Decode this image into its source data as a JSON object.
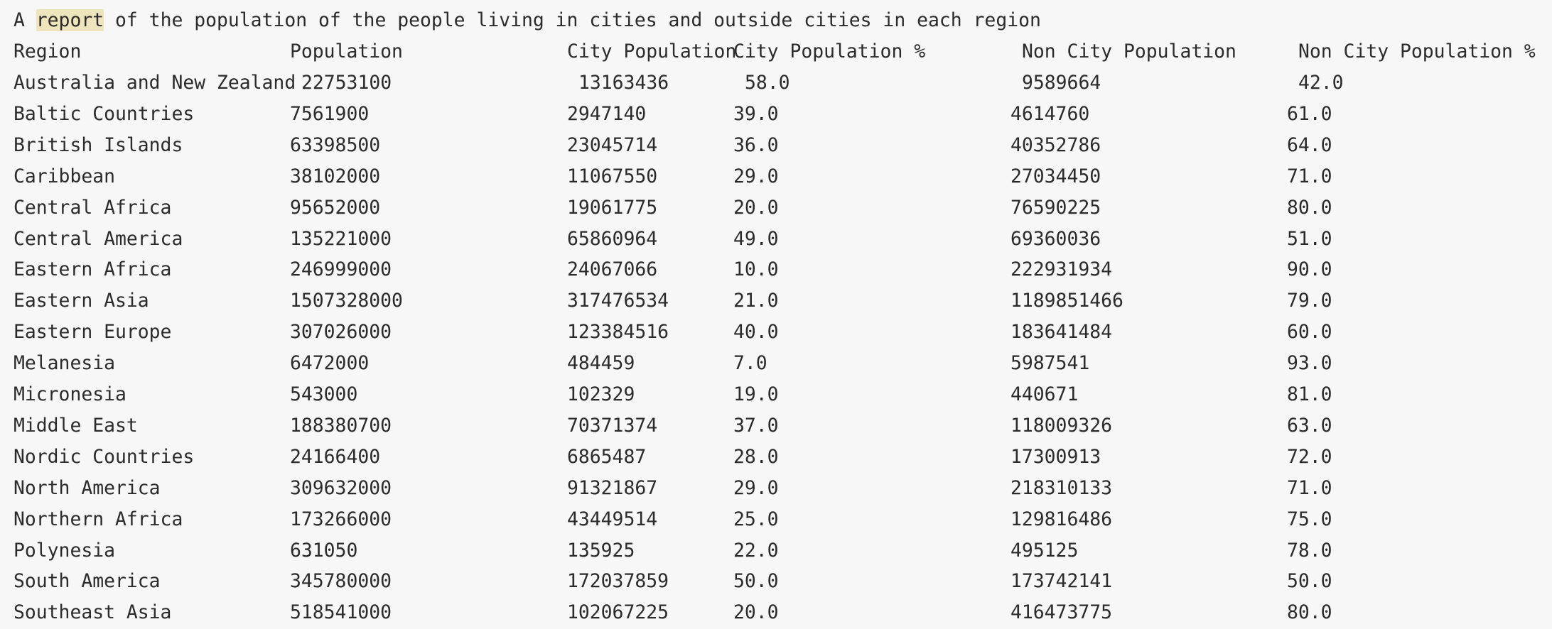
{
  "output": {
    "title": {
      "before": "A ",
      "highlight": "report",
      "after": " of the population of the people living in cities and outside cities in each region"
    },
    "header": {
      "region": "Region",
      "population": "Population",
      "city_population": "City Population",
      "city_population_pct": "City Population %",
      "non_city_population": "Non City Population",
      "non_city_population_pct": "Non City Population %"
    },
    "rows": [
      {
        "region": "Australia and New Zealand",
        "population": "22753100",
        "city_population": "13163436",
        "city_population_pct": "58.0",
        "non_city_population": "9589664",
        "non_city_population_pct": "42.0"
      },
      {
        "region": "Baltic Countries",
        "population": "7561900",
        "city_population": "2947140",
        "city_population_pct": "39.0",
        "non_city_population": "4614760",
        "non_city_population_pct": "61.0"
      },
      {
        "region": "British Islands",
        "population": "63398500",
        "city_population": "23045714",
        "city_population_pct": "36.0",
        "non_city_population": "40352786",
        "non_city_population_pct": "64.0"
      },
      {
        "region": "Caribbean",
        "population": "38102000",
        "city_population": "11067550",
        "city_population_pct": "29.0",
        "non_city_population": "27034450",
        "non_city_population_pct": "71.0"
      },
      {
        "region": "Central Africa",
        "population": "95652000",
        "city_population": "19061775",
        "city_population_pct": "20.0",
        "non_city_population": "76590225",
        "non_city_population_pct": "80.0"
      },
      {
        "region": "Central America",
        "population": "135221000",
        "city_population": "65860964",
        "city_population_pct": "49.0",
        "non_city_population": "69360036",
        "non_city_population_pct": "51.0"
      },
      {
        "region": "Eastern Africa",
        "population": "246999000",
        "city_population": "24067066",
        "city_population_pct": "10.0",
        "non_city_population": "222931934",
        "non_city_population_pct": "90.0"
      },
      {
        "region": "Eastern Asia",
        "population": "1507328000",
        "city_population": "317476534",
        "city_population_pct": "21.0",
        "non_city_population": "1189851466",
        "non_city_population_pct": "79.0"
      },
      {
        "region": "Eastern Europe",
        "population": "307026000",
        "city_population": "123384516",
        "city_population_pct": "40.0",
        "non_city_population": "183641484",
        "non_city_population_pct": "60.0"
      },
      {
        "region": "Melanesia",
        "population": "6472000",
        "city_population": "484459",
        "city_population_pct": "7.0",
        "non_city_population": "5987541",
        "non_city_population_pct": "93.0"
      },
      {
        "region": "Micronesia",
        "population": "543000",
        "city_population": "102329",
        "city_population_pct": "19.0",
        "non_city_population": "440671",
        "non_city_population_pct": "81.0"
      },
      {
        "region": "Middle East",
        "population": "188380700",
        "city_population": "70371374",
        "city_population_pct": "37.0",
        "non_city_population": "118009326",
        "non_city_population_pct": "63.0"
      },
      {
        "region": "Nordic Countries",
        "population": "24166400",
        "city_population": "6865487",
        "city_population_pct": "28.0",
        "non_city_population": "17300913",
        "non_city_population_pct": "72.0"
      },
      {
        "region": "North America",
        "population": "309632000",
        "city_population": "91321867",
        "city_population_pct": "29.0",
        "non_city_population": "218310133",
        "non_city_population_pct": "71.0"
      },
      {
        "region": "Northern Africa",
        "population": "173266000",
        "city_population": "43449514",
        "city_population_pct": "25.0",
        "non_city_population": "129816486",
        "non_city_population_pct": "75.0"
      },
      {
        "region": "Polynesia",
        "population": "631050",
        "city_population": "135925",
        "city_population_pct": "22.0",
        "non_city_population": "495125",
        "non_city_population_pct": "78.0"
      },
      {
        "region": "South America",
        "population": "345780000",
        "city_population": "172037859",
        "city_population_pct": "50.0",
        "non_city_population": "173742141",
        "non_city_population_pct": "50.0"
      },
      {
        "region": "Southeast Asia",
        "population": "518541000",
        "city_population": "102067225",
        "city_population_pct": "20.0",
        "non_city_population": "416473775",
        "non_city_population_pct": "80.0"
      }
    ]
  }
}
